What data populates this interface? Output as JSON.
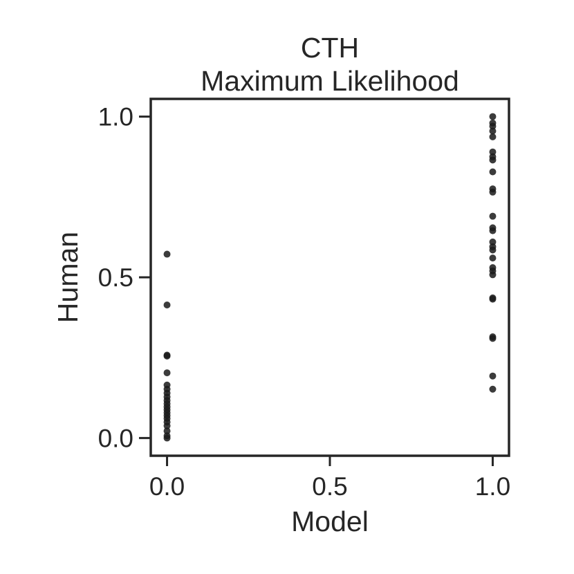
{
  "chart_data": {
    "type": "scatter",
    "title": "CTH",
    "subtitle": "Maximum Likelihood",
    "xlabel": "Model",
    "ylabel": "Human",
    "xlim": [
      -0.05,
      1.05
    ],
    "ylim": [
      -0.055,
      1.055
    ],
    "xticks": [
      "0.0",
      "0.5",
      "1.0"
    ],
    "yticks": [
      "0.0",
      "0.5",
      "1.0"
    ],
    "grid": false,
    "marker_color": "#1a1a1a",
    "axis_color": "#262626",
    "series": [
      {
        "points": [
          [
            0.0,
            0.572
          ],
          [
            0.0,
            0.414
          ],
          [
            0.0,
            0.258
          ],
          [
            0.0,
            0.255
          ],
          [
            0.0,
            0.203
          ],
          [
            0.0,
            0.165
          ],
          [
            0.0,
            0.152
          ],
          [
            0.0,
            0.14
          ],
          [
            0.0,
            0.128
          ],
          [
            0.0,
            0.117
          ],
          [
            0.0,
            0.107
          ],
          [
            0.0,
            0.097
          ],
          [
            0.0,
            0.088
          ],
          [
            0.0,
            0.079
          ],
          [
            0.0,
            0.07
          ],
          [
            0.0,
            0.061
          ],
          [
            0.0,
            0.05
          ],
          [
            0.0,
            0.038
          ],
          [
            0.0,
            0.022
          ],
          [
            0.0,
            0.007
          ],
          [
            0.0,
            0.0
          ],
          [
            1.0,
            1.0
          ],
          [
            1.0,
            0.98
          ],
          [
            1.0,
            0.97
          ],
          [
            1.0,
            0.955
          ],
          [
            1.0,
            0.937
          ],
          [
            1.0,
            0.89
          ],
          [
            1.0,
            0.875
          ],
          [
            1.0,
            0.865
          ],
          [
            1.0,
            0.828
          ],
          [
            1.0,
            0.775
          ],
          [
            1.0,
            0.765
          ],
          [
            1.0,
            0.69
          ],
          [
            1.0,
            0.654
          ],
          [
            1.0,
            0.645
          ],
          [
            1.0,
            0.61
          ],
          [
            1.0,
            0.595
          ],
          [
            1.0,
            0.585
          ],
          [
            1.0,
            0.56
          ],
          [
            1.0,
            0.53
          ],
          [
            1.0,
            0.52
          ],
          [
            1.0,
            0.508
          ],
          [
            1.0,
            0.436
          ],
          [
            1.0,
            0.432
          ],
          [
            1.0,
            0.315
          ],
          [
            1.0,
            0.31
          ],
          [
            1.0,
            0.193
          ],
          [
            1.0,
            0.152
          ]
        ]
      }
    ]
  }
}
